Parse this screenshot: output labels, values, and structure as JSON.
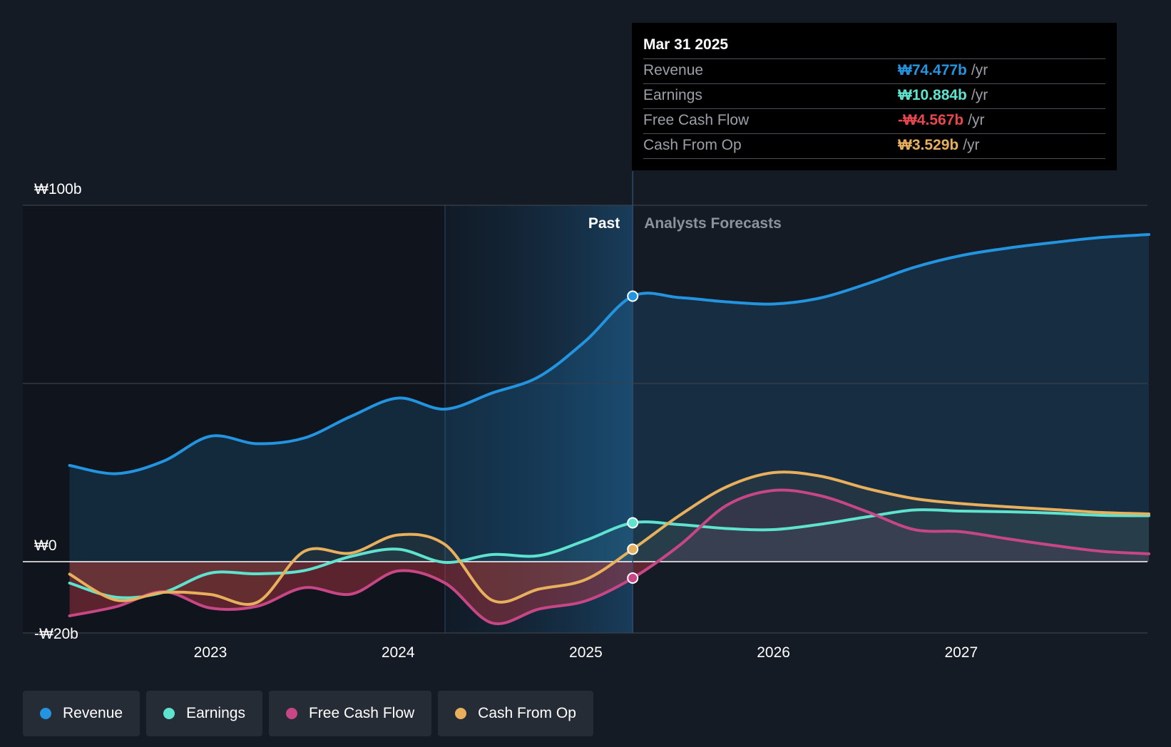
{
  "chart_data": {
    "type": "area",
    "currency": "₩",
    "y_axis": {
      "unit": "b",
      "ylim": [
        -20,
        100
      ],
      "tick_labels": [
        "₩100b",
        "₩0",
        "-₩20b"
      ]
    },
    "x_axis": {
      "tick_labels": [
        "2023",
        "2024",
        "2025",
        "2026",
        "2027"
      ]
    },
    "regions": {
      "past_label": "Past",
      "forecast_label": "Analysts Forecasts"
    },
    "highlight_date": 2025.25,
    "series": [
      {
        "name": "Revenue",
        "color": "#2394e0",
        "points": [
          [
            2022.25,
            27.0
          ],
          [
            2022.5,
            24.7
          ],
          [
            2022.75,
            28.2
          ],
          [
            2023.0,
            35.2
          ],
          [
            2023.25,
            33.1
          ],
          [
            2023.5,
            34.7
          ],
          [
            2023.75,
            40.8
          ],
          [
            2024.0,
            45.9
          ],
          [
            2024.25,
            42.8
          ],
          [
            2024.5,
            47.3
          ],
          [
            2024.75,
            51.9
          ],
          [
            2025.0,
            62.0
          ],
          [
            2025.25,
            74.5
          ],
          [
            2025.5,
            74.1
          ],
          [
            2025.75,
            72.9
          ],
          [
            2026.0,
            72.3
          ],
          [
            2026.25,
            74.0
          ],
          [
            2026.5,
            78.0
          ],
          [
            2026.75,
            82.6
          ],
          [
            2027.0,
            85.9
          ],
          [
            2027.25,
            88.0
          ],
          [
            2027.5,
            89.6
          ],
          [
            2027.75,
            91.0
          ],
          [
            2028.0,
            91.8
          ]
        ]
      },
      {
        "name": "Earnings",
        "color": "#5ee3cf",
        "points": [
          [
            2022.25,
            -6.0
          ],
          [
            2022.5,
            -10.0
          ],
          [
            2022.75,
            -8.6
          ],
          [
            2023.0,
            -3.2
          ],
          [
            2023.25,
            -3.4
          ],
          [
            2023.5,
            -2.5
          ],
          [
            2023.75,
            1.5
          ],
          [
            2024.0,
            3.5
          ],
          [
            2024.25,
            -0.2
          ],
          [
            2024.5,
            2.0
          ],
          [
            2024.75,
            1.7
          ],
          [
            2025.0,
            6.0
          ],
          [
            2025.25,
            10.9
          ],
          [
            2025.5,
            10.4
          ],
          [
            2025.75,
            9.3
          ],
          [
            2026.0,
            9.0
          ],
          [
            2026.25,
            10.5
          ],
          [
            2026.5,
            12.6
          ],
          [
            2026.75,
            14.5
          ],
          [
            2027.0,
            14.2
          ],
          [
            2027.25,
            14.0
          ],
          [
            2027.5,
            13.6
          ],
          [
            2027.75,
            13.0
          ],
          [
            2028.0,
            12.9
          ]
        ]
      },
      {
        "name": "Free Cash Flow",
        "color": "#c64686",
        "points": [
          [
            2022.25,
            -15.2
          ],
          [
            2022.5,
            -12.6
          ],
          [
            2022.75,
            -8.4
          ],
          [
            2023.0,
            -13.0
          ],
          [
            2023.25,
            -12.5
          ],
          [
            2023.5,
            -7.3
          ],
          [
            2023.75,
            -9.1
          ],
          [
            2024.0,
            -2.6
          ],
          [
            2024.25,
            -6.0
          ],
          [
            2024.5,
            -17.2
          ],
          [
            2024.75,
            -13.3
          ],
          [
            2025.0,
            -11.0
          ],
          [
            2025.25,
            -4.6
          ],
          [
            2025.5,
            4.6
          ],
          [
            2025.75,
            15.8
          ],
          [
            2026.0,
            20.0
          ],
          [
            2026.25,
            18.5
          ],
          [
            2026.5,
            14.0
          ],
          [
            2026.75,
            9.0
          ],
          [
            2027.0,
            8.4
          ],
          [
            2027.25,
            6.4
          ],
          [
            2027.5,
            4.5
          ],
          [
            2027.75,
            2.9
          ],
          [
            2028.0,
            2.2
          ]
        ]
      },
      {
        "name": "Cash From Op",
        "color": "#e8b05c",
        "points": [
          [
            2022.25,
            -3.5
          ],
          [
            2022.5,
            -10.8
          ],
          [
            2022.75,
            -8.6
          ],
          [
            2023.0,
            -9.2
          ],
          [
            2023.25,
            -11.4
          ],
          [
            2023.5,
            2.9
          ],
          [
            2023.75,
            2.4
          ],
          [
            2024.0,
            7.5
          ],
          [
            2024.25,
            4.8
          ],
          [
            2024.5,
            -10.8
          ],
          [
            2024.75,
            -7.7
          ],
          [
            2025.0,
            -5.0
          ],
          [
            2025.25,
            3.5
          ],
          [
            2025.5,
            13.0
          ],
          [
            2025.75,
            21.0
          ],
          [
            2026.0,
            25.0
          ],
          [
            2026.25,
            24.0
          ],
          [
            2026.5,
            20.5
          ],
          [
            2026.75,
            17.7
          ],
          [
            2027.0,
            16.3
          ],
          [
            2027.25,
            15.4
          ],
          [
            2027.5,
            14.6
          ],
          [
            2027.75,
            13.8
          ],
          [
            2028.0,
            13.4
          ]
        ]
      }
    ]
  },
  "tooltip": {
    "date": "Mar 31 2025",
    "rows": [
      {
        "name": "Revenue",
        "value": "₩74.477b",
        "unit": "/yr",
        "color": "#2394e0"
      },
      {
        "name": "Earnings",
        "value": "₩10.884b",
        "unit": "/yr",
        "color": "#5ee3cf"
      },
      {
        "name": "Free Cash Flow",
        "value": "-₩4.567b",
        "unit": "/yr",
        "color": "#e8474f"
      },
      {
        "name": "Cash From Op",
        "value": "₩3.529b",
        "unit": "/yr",
        "color": "#e8b05c"
      }
    ]
  },
  "legend": [
    {
      "label": "Revenue",
      "color": "#2394e0"
    },
    {
      "label": "Earnings",
      "color": "#5ee3cf"
    },
    {
      "label": "Free Cash Flow",
      "color": "#c64686"
    },
    {
      "label": "Cash From Op",
      "color": "#e8b05c"
    }
  ]
}
